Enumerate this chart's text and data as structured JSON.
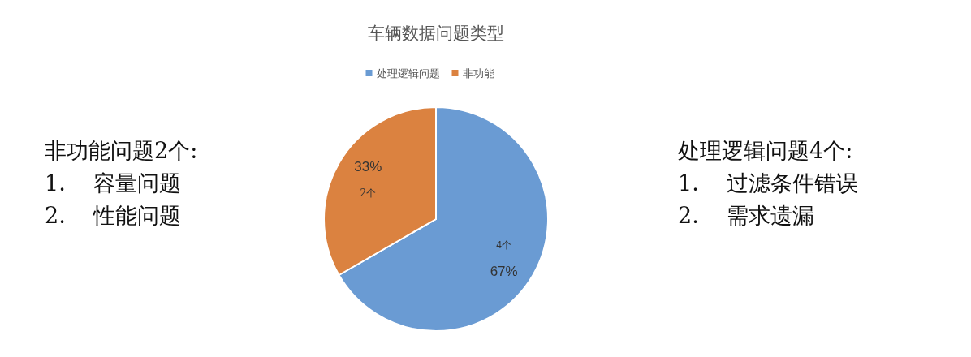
{
  "chart_data": {
    "type": "pie",
    "title": "车辆数据问题类型",
    "categories": [
      "处理逻辑问题",
      "非功能"
    ],
    "values": [
      4,
      2
    ],
    "value_labels": [
      "4个\n67%",
      "33%\n2个"
    ],
    "colors": [
      "#6a9bd3",
      "#db8240"
    ],
    "legend": "top",
    "annotations": [
      "非功能问题2个:",
      "1.    容量问题",
      "2.    性能问题",
      "处理逻辑问题4个:",
      "1.    过滤条件错误",
      "2.    需求遗漏"
    ]
  }
}
